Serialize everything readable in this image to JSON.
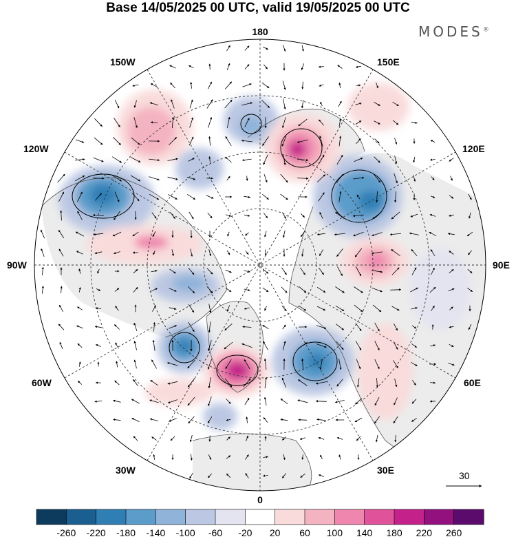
{
  "title": "Base 14/05/2025 00 UTC, valid 19/05/2025 00 UTC",
  "brand": "MODES",
  "brand_mark": "®",
  "lon_labels": {
    "top": "180",
    "bottom": "0",
    "left": "90W",
    "right": "90E",
    "upper_left_1": "150W",
    "upper_left_2": "120W",
    "upper_right_1": "150E",
    "upper_right_2": "120E",
    "lower_left_1": "60W",
    "lower_left_2": "30W",
    "lower_right_1": "60E",
    "lower_right_2": "30E"
  },
  "vector_reference": {
    "value": "30"
  },
  "colorbar": {
    "labels": [
      "-260",
      "-220",
      "-180",
      "-140",
      "-100",
      "-60",
      "-20",
      "20",
      "60",
      "100",
      "140",
      "180",
      "220",
      "260"
    ],
    "colors": [
      "#0d3b5e",
      "#1a5f8f",
      "#2f7fb5",
      "#5b9ccb",
      "#8fb3d9",
      "#bcc8e3",
      "#e4e4f1",
      "#ffffff",
      "#f9dbdb",
      "#f4b3c0",
      "#ee86ad",
      "#e0529a",
      "#c4228a",
      "#92117e",
      "#5b0b6b"
    ]
  },
  "colors": {
    "land": "#ececec",
    "coast": "#555555",
    "grid": "#333333"
  }
}
